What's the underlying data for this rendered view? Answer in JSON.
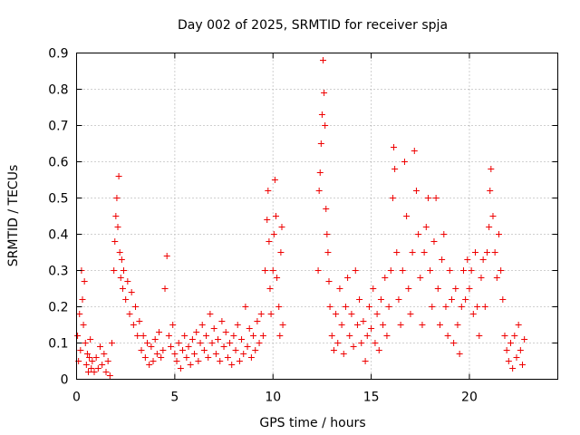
{
  "chart_data": {
    "type": "scatter",
    "title": "Day 002 of 2025, SRMTID for receiver spja",
    "xlabel": "GPS time / hours",
    "ylabel": "SRMTID / TECUs",
    "xlim": [
      0,
      24.5
    ],
    "ylim": [
      0,
      0.9
    ],
    "xticks": [
      0,
      5,
      10,
      15,
      20
    ],
    "yticks": [
      0,
      0.1,
      0.2,
      0.3,
      0.4,
      0.5,
      0.6,
      0.7,
      0.8,
      0.9
    ],
    "xtick_labels": [
      "0",
      "5",
      "10",
      "15",
      "20"
    ],
    "ytick_labels": [
      "0",
      "0.1",
      "0.2",
      "0.3",
      "0.4",
      "0.5",
      "0.6",
      "0.7",
      "0.8",
      "0.9"
    ],
    "grid": true,
    "marker": "+",
    "color": "#ee0000",
    "series": [
      {
        "name": "SRMTID",
        "points": [
          [
            0.05,
            0.12
          ],
          [
            0.1,
            0.05
          ],
          [
            0.15,
            0.18
          ],
          [
            0.2,
            0.08
          ],
          [
            0.25,
            0.3
          ],
          [
            0.3,
            0.22
          ],
          [
            0.35,
            0.15
          ],
          [
            0.4,
            0.27
          ],
          [
            0.45,
            0.1
          ],
          [
            0.5,
            0.04
          ],
          [
            0.55,
            0.07
          ],
          [
            0.6,
            0.02
          ],
          [
            0.65,
            0.06
          ],
          [
            0.7,
            0.11
          ],
          [
            0.75,
            0.03
          ],
          [
            0.8,
            0.05
          ],
          [
            0.9,
            0.02
          ],
          [
            1.0,
            0.06
          ],
          [
            1.1,
            0.03
          ],
          [
            1.2,
            0.09
          ],
          [
            1.3,
            0.04
          ],
          [
            1.4,
            0.07
          ],
          [
            1.5,
            0.02
          ],
          [
            1.6,
            0.05
          ],
          [
            1.7,
            0.01
          ],
          [
            1.8,
            0.1
          ],
          [
            1.9,
            0.3
          ],
          [
            1.95,
            0.38
          ],
          [
            2.0,
            0.45
          ],
          [
            2.05,
            0.5
          ],
          [
            2.1,
            0.42
          ],
          [
            2.15,
            0.56
          ],
          [
            2.2,
            0.35
          ],
          [
            2.25,
            0.28
          ],
          [
            2.3,
            0.33
          ],
          [
            2.35,
            0.25
          ],
          [
            2.4,
            0.3
          ],
          [
            2.5,
            0.22
          ],
          [
            2.6,
            0.27
          ],
          [
            2.7,
            0.18
          ],
          [
            2.8,
            0.24
          ],
          [
            2.9,
            0.15
          ],
          [
            3.0,
            0.2
          ],
          [
            3.1,
            0.12
          ],
          [
            3.2,
            0.16
          ],
          [
            3.3,
            0.08
          ],
          [
            3.4,
            0.12
          ],
          [
            3.5,
            0.06
          ],
          [
            3.6,
            0.1
          ],
          [
            3.7,
            0.04
          ],
          [
            3.8,
            0.09
          ],
          [
            3.9,
            0.05
          ],
          [
            4.0,
            0.11
          ],
          [
            4.1,
            0.07
          ],
          [
            4.2,
            0.13
          ],
          [
            4.3,
            0.06
          ],
          [
            4.4,
            0.08
          ],
          [
            4.5,
            0.25
          ],
          [
            4.6,
            0.34
          ],
          [
            4.7,
            0.12
          ],
          [
            4.8,
            0.09
          ],
          [
            4.9,
            0.15
          ],
          [
            5.0,
            0.07
          ],
          [
            5.1,
            0.05
          ],
          [
            5.2,
            0.1
          ],
          [
            5.3,
            0.03
          ],
          [
            5.4,
            0.08
          ],
          [
            5.5,
            0.12
          ],
          [
            5.6,
            0.06
          ],
          [
            5.7,
            0.09
          ],
          [
            5.8,
            0.04
          ],
          [
            5.9,
            0.11
          ],
          [
            6.0,
            0.07
          ],
          [
            6.1,
            0.13
          ],
          [
            6.2,
            0.05
          ],
          [
            6.3,
            0.1
          ],
          [
            6.4,
            0.15
          ],
          [
            6.5,
            0.08
          ],
          [
            6.6,
            0.12
          ],
          [
            6.7,
            0.06
          ],
          [
            6.8,
            0.18
          ],
          [
            6.9,
            0.1
          ],
          [
            7.0,
            0.14
          ],
          [
            7.1,
            0.07
          ],
          [
            7.2,
            0.11
          ],
          [
            7.3,
            0.05
          ],
          [
            7.4,
            0.16
          ],
          [
            7.5,
            0.09
          ],
          [
            7.6,
            0.13
          ],
          [
            7.7,
            0.06
          ],
          [
            7.8,
            0.1
          ],
          [
            7.9,
            0.04
          ],
          [
            8.0,
            0.12
          ],
          [
            8.1,
            0.08
          ],
          [
            8.2,
            0.15
          ],
          [
            8.3,
            0.05
          ],
          [
            8.4,
            0.11
          ],
          [
            8.5,
            0.07
          ],
          [
            8.6,
            0.2
          ],
          [
            8.7,
            0.09
          ],
          [
            8.8,
            0.14
          ],
          [
            8.9,
            0.06
          ],
          [
            9.0,
            0.12
          ],
          [
            9.1,
            0.08
          ],
          [
            9.2,
            0.16
          ],
          [
            9.3,
            0.1
          ],
          [
            9.4,
            0.18
          ],
          [
            9.5,
            0.12
          ],
          [
            9.6,
            0.3
          ],
          [
            9.7,
            0.44
          ],
          [
            9.75,
            0.52
          ],
          [
            9.8,
            0.38
          ],
          [
            9.85,
            0.25
          ],
          [
            9.9,
            0.18
          ],
          [
            10.0,
            0.3
          ],
          [
            10.05,
            0.4
          ],
          [
            10.1,
            0.55
          ],
          [
            10.15,
            0.45
          ],
          [
            10.2,
            0.28
          ],
          [
            10.3,
            0.2
          ],
          [
            10.35,
            0.12
          ],
          [
            10.4,
            0.35
          ],
          [
            10.45,
            0.42
          ],
          [
            10.5,
            0.15
          ],
          [
            12.3,
            0.3
          ],
          [
            12.35,
            0.52
          ],
          [
            12.4,
            0.57
          ],
          [
            12.45,
            0.65
          ],
          [
            12.5,
            0.73
          ],
          [
            12.55,
            0.88
          ],
          [
            12.6,
            0.79
          ],
          [
            12.65,
            0.7
          ],
          [
            12.7,
            0.47
          ],
          [
            12.75,
            0.4
          ],
          [
            12.8,
            0.35
          ],
          [
            12.85,
            0.27
          ],
          [
            12.9,
            0.2
          ],
          [
            13.0,
            0.12
          ],
          [
            13.1,
            0.08
          ],
          [
            13.2,
            0.18
          ],
          [
            13.3,
            0.1
          ],
          [
            13.4,
            0.25
          ],
          [
            13.5,
            0.15
          ],
          [
            13.6,
            0.07
          ],
          [
            13.7,
            0.2
          ],
          [
            13.8,
            0.28
          ],
          [
            13.9,
            0.12
          ],
          [
            14.0,
            0.18
          ],
          [
            14.1,
            0.09
          ],
          [
            14.2,
            0.3
          ],
          [
            14.3,
            0.15
          ],
          [
            14.4,
            0.22
          ],
          [
            14.5,
            0.1
          ],
          [
            14.6,
            0.16
          ],
          [
            14.7,
            0.05
          ],
          [
            14.8,
            0.12
          ],
          [
            14.9,
            0.2
          ],
          [
            15.0,
            0.14
          ],
          [
            15.1,
            0.25
          ],
          [
            15.2,
            0.1
          ],
          [
            15.3,
            0.18
          ],
          [
            15.4,
            0.08
          ],
          [
            15.5,
            0.22
          ],
          [
            15.6,
            0.15
          ],
          [
            15.7,
            0.28
          ],
          [
            15.8,
            0.12
          ],
          [
            15.9,
            0.2
          ],
          [
            16.0,
            0.3
          ],
          [
            16.1,
            0.5
          ],
          [
            16.15,
            0.64
          ],
          [
            16.2,
            0.58
          ],
          [
            16.3,
            0.35
          ],
          [
            16.4,
            0.22
          ],
          [
            16.5,
            0.15
          ],
          [
            16.6,
            0.3
          ],
          [
            16.7,
            0.6
          ],
          [
            16.8,
            0.45
          ],
          [
            16.9,
            0.25
          ],
          [
            17.0,
            0.18
          ],
          [
            17.1,
            0.35
          ],
          [
            17.2,
            0.63
          ],
          [
            17.3,
            0.52
          ],
          [
            17.4,
            0.4
          ],
          [
            17.5,
            0.28
          ],
          [
            17.6,
            0.15
          ],
          [
            17.7,
            0.35
          ],
          [
            17.8,
            0.42
          ],
          [
            17.9,
            0.5
          ],
          [
            18.0,
            0.3
          ],
          [
            18.1,
            0.2
          ],
          [
            18.2,
            0.38
          ],
          [
            18.3,
            0.5
          ],
          [
            18.4,
            0.25
          ],
          [
            18.5,
            0.15
          ],
          [
            18.6,
            0.33
          ],
          [
            18.7,
            0.4
          ],
          [
            18.8,
            0.2
          ],
          [
            18.9,
            0.12
          ],
          [
            19.0,
            0.3
          ],
          [
            19.1,
            0.22
          ],
          [
            19.2,
            0.1
          ],
          [
            19.3,
            0.25
          ],
          [
            19.4,
            0.15
          ],
          [
            19.5,
            0.07
          ],
          [
            19.6,
            0.2
          ],
          [
            19.7,
            0.3
          ],
          [
            19.8,
            0.22
          ],
          [
            19.9,
            0.33
          ],
          [
            20.0,
            0.25
          ],
          [
            20.1,
            0.3
          ],
          [
            20.2,
            0.18
          ],
          [
            20.3,
            0.35
          ],
          [
            20.4,
            0.2
          ],
          [
            20.5,
            0.12
          ],
          [
            20.6,
            0.28
          ],
          [
            20.7,
            0.33
          ],
          [
            20.8,
            0.2
          ],
          [
            20.9,
            0.35
          ],
          [
            21.0,
            0.42
          ],
          [
            21.05,
            0.52
          ],
          [
            21.1,
            0.58
          ],
          [
            21.2,
            0.45
          ],
          [
            21.3,
            0.35
          ],
          [
            21.4,
            0.28
          ],
          [
            21.5,
            0.4
          ],
          [
            21.6,
            0.3
          ],
          [
            21.7,
            0.22
          ],
          [
            21.8,
            0.12
          ],
          [
            21.9,
            0.08
          ],
          [
            22.0,
            0.05
          ],
          [
            22.1,
            0.1
          ],
          [
            22.2,
            0.03
          ],
          [
            22.3,
            0.12
          ],
          [
            22.4,
            0.06
          ],
          [
            22.5,
            0.15
          ],
          [
            22.6,
            0.08
          ],
          [
            22.7,
            0.04
          ],
          [
            22.8,
            0.11
          ]
        ]
      }
    ]
  }
}
